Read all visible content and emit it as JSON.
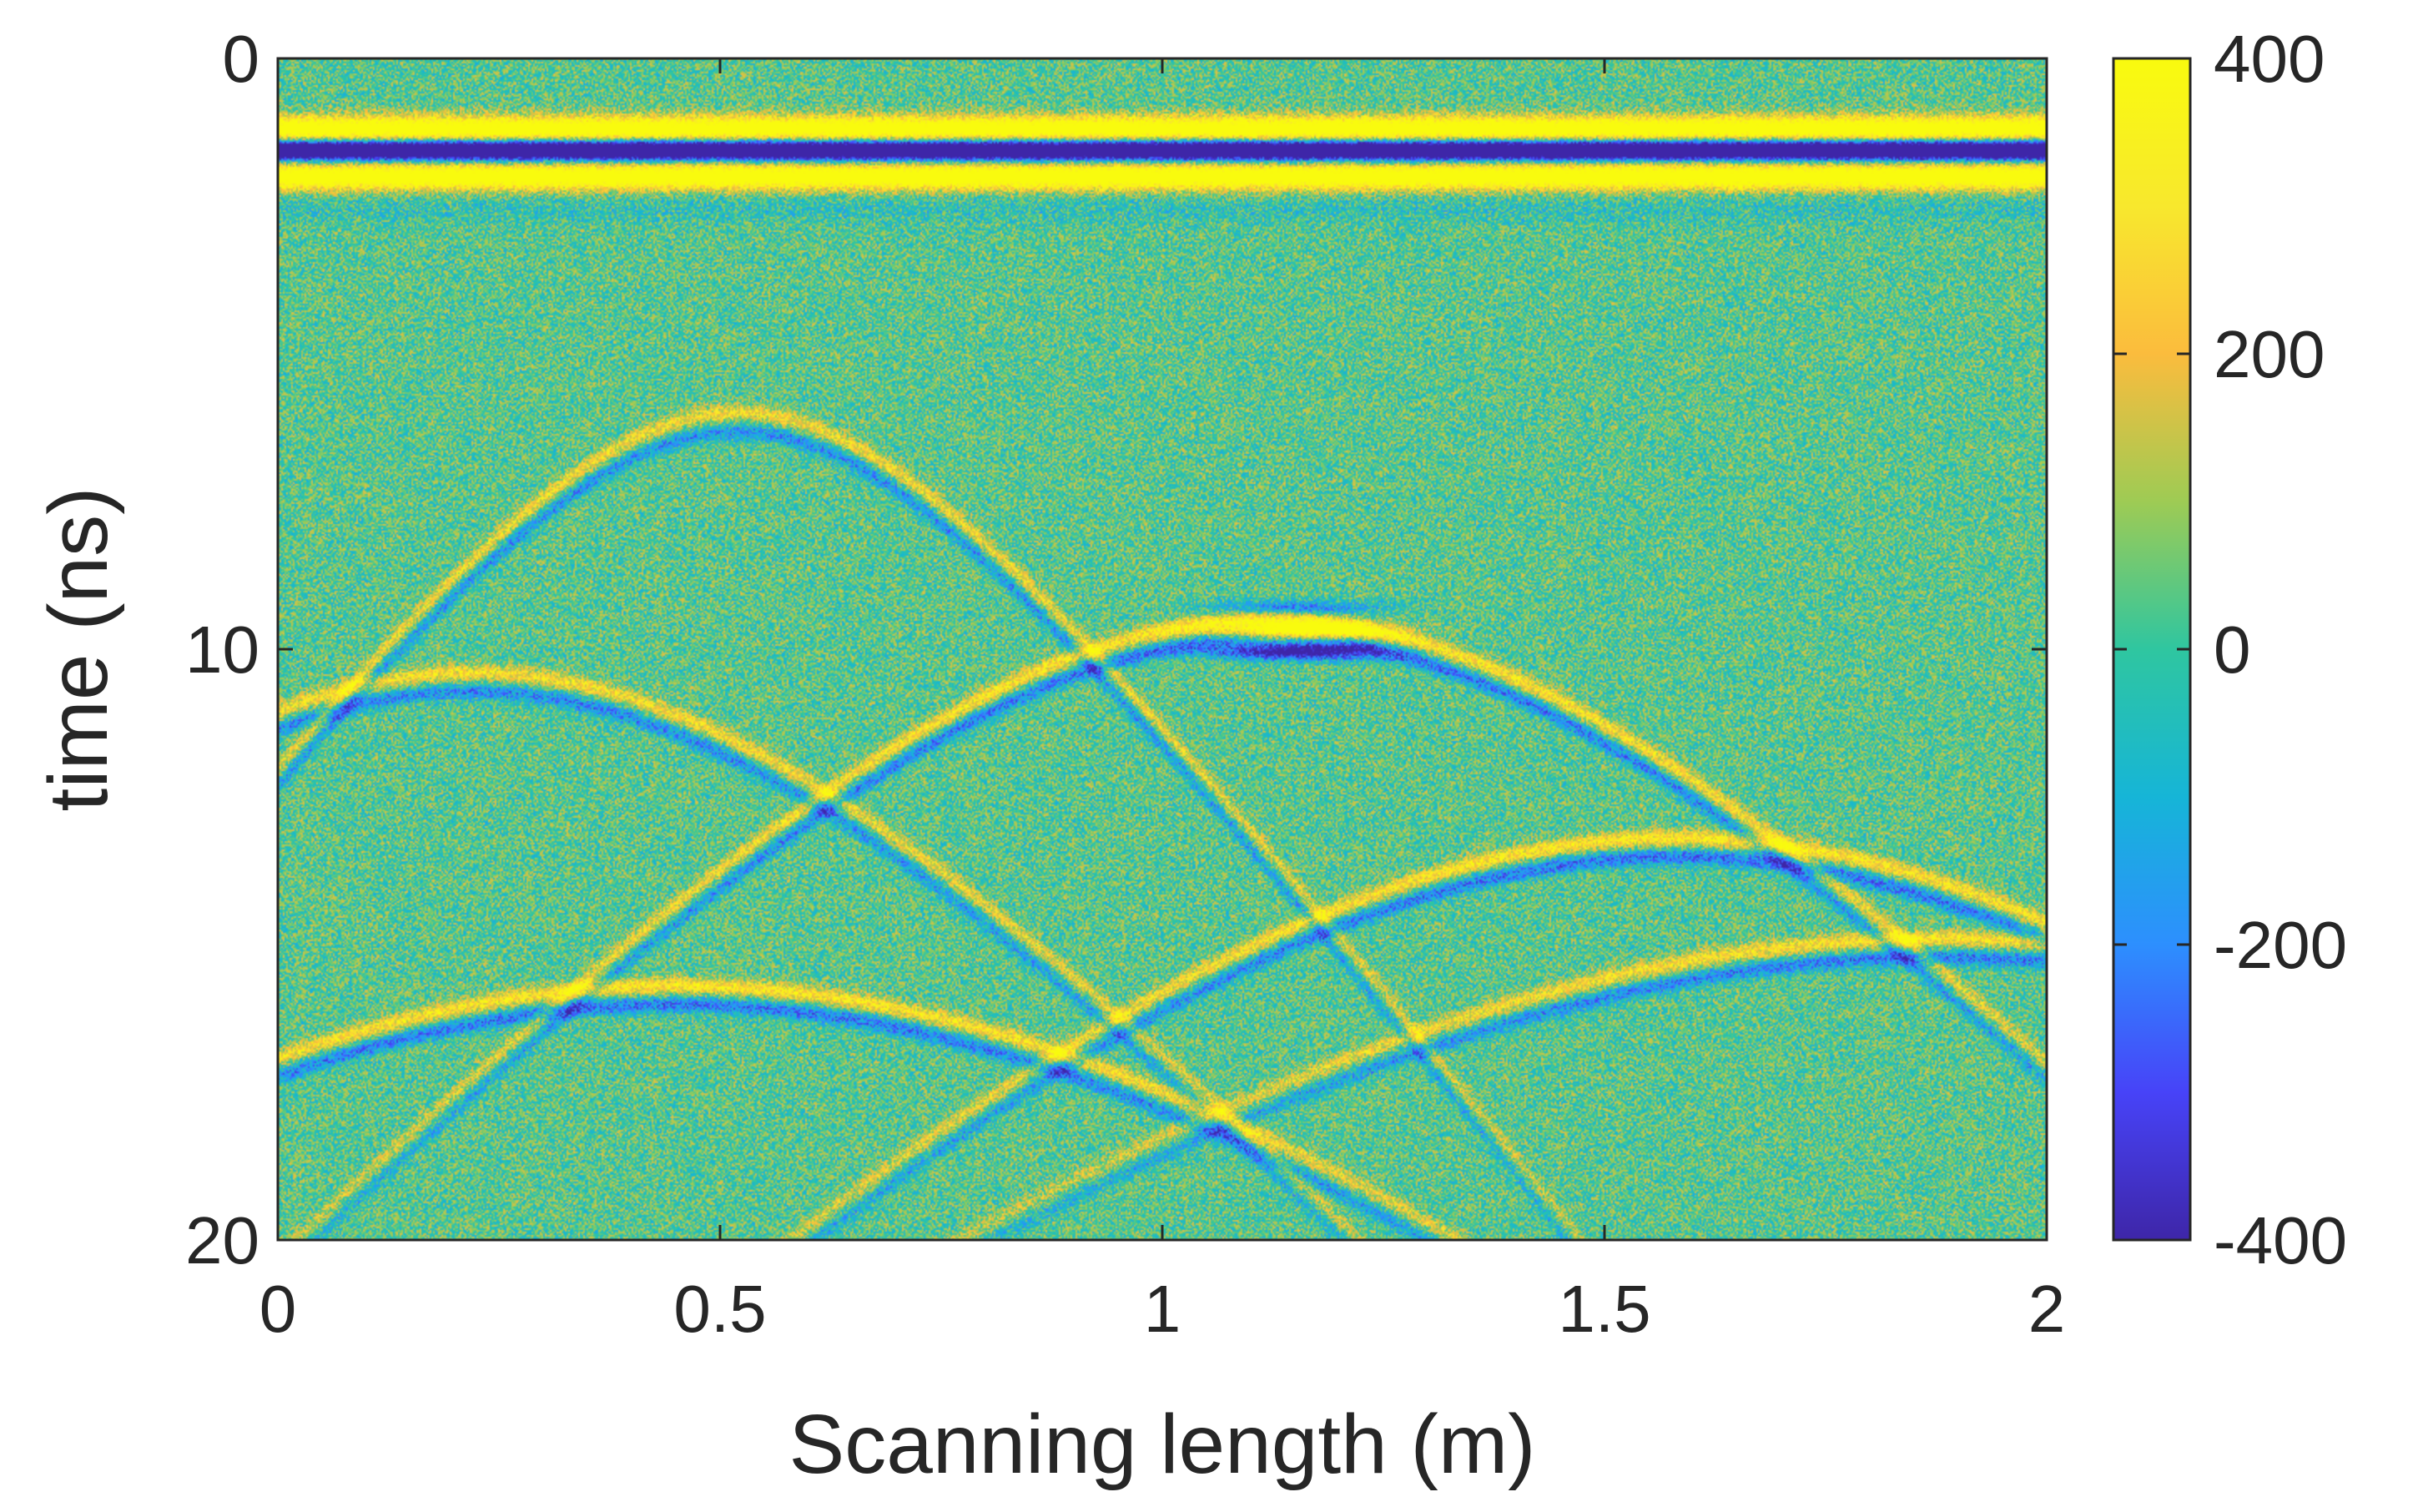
{
  "chart_data": {
    "type": "heatmap",
    "title": "",
    "xlabel": "Scanning length (m)",
    "ylabel": "time (ns)",
    "xlim": [
      0,
      2
    ],
    "ylim": [
      0,
      20
    ],
    "y_direction": "reversed",
    "x_ticks": [
      0,
      0.5,
      1,
      1.5,
      2
    ],
    "x_tick_labels": [
      "0",
      "0.5",
      "1",
      "1.5",
      "2"
    ],
    "y_ticks": [
      0,
      10,
      20
    ],
    "y_tick_labels": [
      "0",
      "10",
      "20"
    ],
    "colorbar": {
      "range": [
        -400,
        400
      ],
      "ticks": [
        400,
        200,
        0,
        -200,
        -400
      ],
      "tick_labels": [
        "400",
        "200",
        "0",
        "-200",
        "-400"
      ],
      "colormap": [
        "#3e26a8",
        "#4743f8",
        "#2d8ffe",
        "#16b5d7",
        "#2fc6a0",
        "#9ecb54",
        "#fbbc3d",
        "#f8e82d",
        "#f9fb0e"
      ]
    },
    "background_noise_amplitude": 140,
    "direct_wave": {
      "label": "surface reflection band",
      "positive_lobes_ns": [
        1.2,
        2.0
      ],
      "negative_lobe_ns": 1.55,
      "amplitude": 400
    },
    "hyperbolas": [
      {
        "apex_x_m": 0.52,
        "apex_t_ns": 6.0,
        "curvature": 10.0,
        "amplitude": 220
      },
      {
        "apex_x_m": 0.22,
        "apex_t_ns": 10.4,
        "curvature": 8.5,
        "amplitude": 240
      },
      {
        "apex_x_m": 1.12,
        "apex_t_ns": 9.5,
        "curvature": 8.0,
        "amplitude": 280
      },
      {
        "apex_x_m": 0.45,
        "apex_t_ns": 15.7,
        "curvature": 7.0,
        "amplitude": 280
      },
      {
        "apex_x_m": 1.58,
        "apex_t_ns": 13.2,
        "curvature": 7.5,
        "amplitude": 280
      },
      {
        "apex_x_m": 1.88,
        "apex_t_ns": 14.9,
        "curvature": 6.0,
        "amplitude": 260
      }
    ],
    "bright_spot": {
      "x_m": 1.15,
      "t_ns": 9.75,
      "amplitude": 400
    }
  }
}
